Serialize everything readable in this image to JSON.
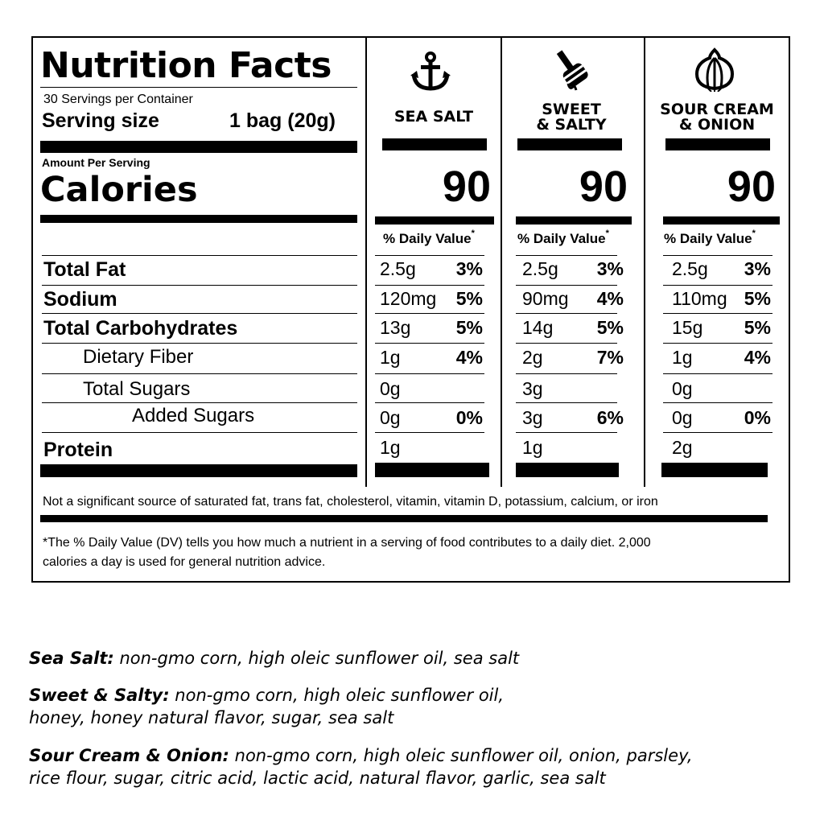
{
  "label": {
    "title": "Nutrition Facts",
    "servings_per_container": "30 Servings per Container",
    "serving_size_label": "Serving size",
    "serving_size_value": "1 bag (20g)",
    "amount_per_serving": "Amount Per Serving",
    "calories_label": "Calories",
    "daily_value_header": "% Daily Value",
    "daily_value_mark": "*",
    "nutrients": [
      {
        "name": "Total Fat"
      },
      {
        "name": "Sodium"
      },
      {
        "name": "Total Carbohydrates"
      },
      {
        "name": "Dietary Fiber"
      },
      {
        "name": "Total Sugars"
      },
      {
        "name": "Added Sugars"
      },
      {
        "name": "Protein"
      }
    ],
    "flavors": [
      {
        "name_line1": "SEA SALT",
        "name_line2": "",
        "icon": "anchor-icon",
        "calories": "90",
        "values": [
          {
            "amount": "2.5g",
            "dv": "3%"
          },
          {
            "amount": "120mg",
            "dv": "5%"
          },
          {
            "amount": "13g",
            "dv": "5%"
          },
          {
            "amount": "1g",
            "dv": "4%"
          },
          {
            "amount": "0g",
            "dv": ""
          },
          {
            "amount": "0g",
            "dv": "0%"
          },
          {
            "amount": "1g",
            "dv": ""
          }
        ]
      },
      {
        "name_line1": "SWEET",
        "name_line2": "& SALTY",
        "icon": "honey-dipper-icon",
        "calories": "90",
        "values": [
          {
            "amount": "2.5g",
            "dv": "3%"
          },
          {
            "amount": "90mg",
            "dv": "4%"
          },
          {
            "amount": "14g",
            "dv": "5%"
          },
          {
            "amount": "2g",
            "dv": "7%"
          },
          {
            "amount": "3g",
            "dv": ""
          },
          {
            "amount": "3g",
            "dv": "6%"
          },
          {
            "amount": "1g",
            "dv": ""
          }
        ]
      },
      {
        "name_line1": "SOUR CREAM",
        "name_line2": "& ONION",
        "icon": "onion-icon",
        "calories": "90",
        "values": [
          {
            "amount": "2.5g",
            "dv": "3%"
          },
          {
            "amount": "110mg",
            "dv": "5%"
          },
          {
            "amount": "15g",
            "dv": "5%"
          },
          {
            "amount": "1g",
            "dv": "4%"
          },
          {
            "amount": "0g",
            "dv": ""
          },
          {
            "amount": "0g",
            "dv": "0%"
          },
          {
            "amount": "2g",
            "dv": ""
          }
        ]
      }
    ],
    "not_significant": "Not a significant source of saturated fat, trans fat, cholesterol, vitamin, vitamin D, potassium, calcium, or iron",
    "footnote_line1": "*The % Daily Value (DV) tells you how much a nutrient in a serving of food contributes to a daily diet. 2,000",
    "footnote_line2": "calories a day is used for general nutrition advice."
  },
  "ingredients": [
    {
      "flavor": "Sea Salt:",
      "line1": " non-gmo corn, high oleic sunflower oil, sea salt",
      "line2": ""
    },
    {
      "flavor": "Sweet & Salty:",
      "line1": " non-gmo corn, high oleic sunflower oil,",
      "line2": "honey, honey natural flavor, sugar, sea salt"
    },
    {
      "flavor": "Sour Cream & Onion:",
      "line1": " non-gmo corn, high oleic sunflower oil, onion, parsley,",
      "line2": "rice flour, sugar, citric acid, lactic acid, natural flavor, garlic, sea salt"
    }
  ]
}
